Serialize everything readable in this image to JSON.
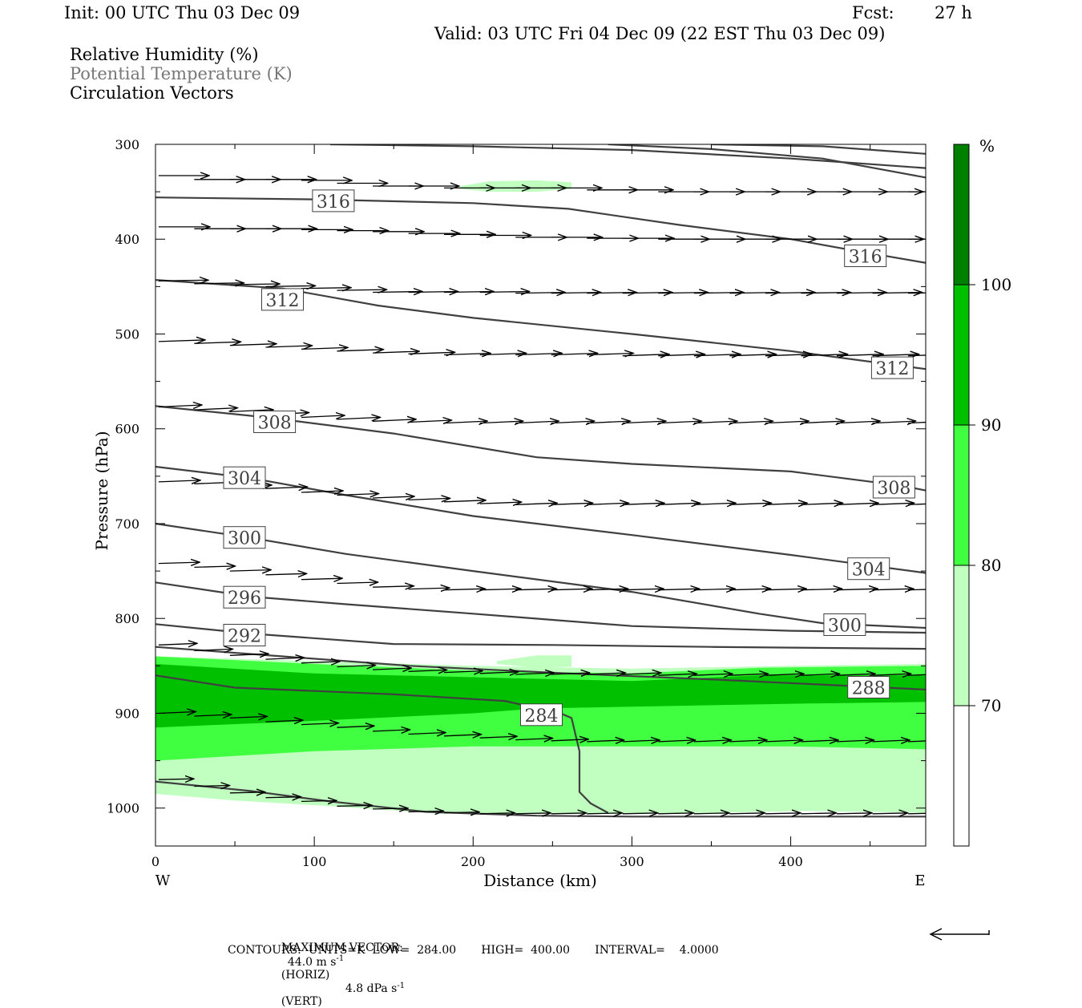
{
  "header": {
    "init": "Init: 00 UTC Thu 03 Dec 09",
    "fcst_label": "Fcst:",
    "fcst_value": "27 h",
    "valid": "Valid: 03 UTC Fri 04 Dec 09 (22 EST Thu 03 Dec 09)",
    "field1": "Relative Humidity (%)",
    "field2": "Potential Temperature (K)",
    "field3": "Circulation Vectors"
  },
  "footer": {
    "max_vector_label": "MAXIMUM VECTOR:",
    "horiz_value": "44.0 m s",
    "horiz_unit": "(HORIZ)",
    "vert_value": "4.8 dPa s",
    "vert_unit": "(VERT)",
    "exponent": "-1",
    "contours": "CONTOURS:  UNITS=K  LOW=  284.00       HIGH=  400.00       INTERVAL=    4.0000"
  },
  "colors": {
    "rh_70_80": "#c0ffc0",
    "rh_80_90": "#40ff40",
    "rh_90_100": "#00c000",
    "rh_100": "#008000",
    "theta_line": "#404040"
  },
  "chart_data": {
    "type": "cross-section",
    "xlabel": "Distance (km)",
    "ylabel": "Pressure (hPa)",
    "xlim": [
      0,
      485
    ],
    "ylim": [
      300,
      1040
    ],
    "x_ticks": [
      "0",
      "100",
      "200",
      "300",
      "400"
    ],
    "y_ticks": [
      "300",
      "400",
      "500",
      "600",
      "700",
      "800",
      "900",
      "1000"
    ],
    "x_end_labels": {
      "left": "W",
      "right": "E"
    },
    "colorbar": {
      "unit": "%",
      "levels": [
        "70",
        "80",
        "90",
        "100"
      ],
      "colors": [
        "#ffffff",
        "#c0ffc0",
        "#40ff40",
        "#00c000",
        "#008000"
      ]
    },
    "rh_regions": [
      {
        "level": "70-80",
        "fill": "#c0ffc0",
        "points": [
          [
            0,
            840
          ],
          [
            100,
            845
          ],
          [
            200,
            850
          ],
          [
            300,
            853
          ],
          [
            400,
            850
          ],
          [
            485,
            848
          ],
          [
            485,
            1005
          ],
          [
            410,
            1003
          ],
          [
            350,
            1005
          ],
          [
            290,
            1006
          ],
          [
            230,
            1006
          ],
          [
            180,
            1006
          ],
          [
            110,
            998
          ],
          [
            50,
            992
          ],
          [
            0,
            985
          ]
        ]
      },
      {
        "level": "70-80",
        "fill": "#c0ffc0",
        "points": [
          [
            215,
            845
          ],
          [
            240,
            839
          ],
          [
            262,
            839
          ],
          [
            262,
            851
          ],
          [
            240,
            852
          ],
          [
            215,
            848
          ]
        ]
      },
      {
        "level": "80-90",
        "fill": "#40ff40",
        "points": [
          [
            0,
            840
          ],
          [
            100,
            848
          ],
          [
            200,
            855
          ],
          [
            300,
            858
          ],
          [
            380,
            852
          ],
          [
            485,
            850
          ],
          [
            485,
            938
          ],
          [
            400,
            935
          ],
          [
            300,
            935
          ],
          [
            200,
            935
          ],
          [
            100,
            940
          ],
          [
            0,
            950
          ]
        ]
      },
      {
        "level": "90-100",
        "fill": "#00c000",
        "points": [
          [
            0,
            848
          ],
          [
            100,
            858
          ],
          [
            200,
            862
          ],
          [
            300,
            866
          ],
          [
            380,
            860
          ],
          [
            485,
            860
          ],
          [
            485,
            888
          ],
          [
            400,
            890
          ],
          [
            300,
            893
          ],
          [
            240,
            895
          ],
          [
            200,
            900
          ],
          [
            100,
            908
          ],
          [
            0,
            915
          ]
        ]
      },
      {
        "level": "upper-moist",
        "fill": "#c0ffc0",
        "points": [
          [
            192,
            344
          ],
          [
            210,
            339
          ],
          [
            240,
            338
          ],
          [
            262,
            340
          ],
          [
            262,
            347
          ],
          [
            240,
            350
          ],
          [
            210,
            350
          ],
          [
            192,
            347
          ]
        ]
      }
    ],
    "theta_contours": [
      {
        "label": "316",
        "points": [
          [
            110,
            300
          ],
          [
            200,
            302
          ],
          [
            300,
            306
          ],
          [
            400,
            315
          ],
          [
            485,
            325
          ]
        ]
      },
      {
        "label": "",
        "points": [
          [
            285,
            300
          ],
          [
            350,
            305
          ],
          [
            420,
            315
          ],
          [
            485,
            335
          ]
        ]
      },
      {
        "label": "",
        "points": [
          [
            350,
            300
          ],
          [
            420,
            302
          ],
          [
            485,
            310
          ]
        ]
      },
      {
        "label": "316",
        "points": [
          [
            0,
            356
          ],
          [
            100,
            358
          ],
          [
            200,
            362
          ],
          [
            260,
            368
          ],
          [
            330,
            385
          ],
          [
            400,
            400
          ],
          [
            440,
            412
          ],
          [
            485,
            425
          ]
        ]
      },
      {
        "label": "312",
        "points": [
          [
            0,
            443
          ],
          [
            80,
            452
          ],
          [
            140,
            470
          ],
          [
            200,
            483
          ],
          [
            300,
            500
          ],
          [
            400,
            518
          ],
          [
            485,
            537
          ]
        ]
      },
      {
        "label": "308",
        "points": [
          [
            0,
            576
          ],
          [
            70,
            588
          ],
          [
            150,
            605
          ],
          [
            240,
            630
          ],
          [
            300,
            637
          ],
          [
            400,
            645
          ],
          [
            470,
            660
          ],
          [
            485,
            665
          ]
        ]
      },
      {
        "label": "304",
        "points": [
          [
            0,
            640
          ],
          [
            60,
            652
          ],
          [
            120,
            670
          ],
          [
            200,
            692
          ],
          [
            300,
            712
          ],
          [
            400,
            733
          ],
          [
            485,
            752
          ]
        ]
      },
      {
        "label": "300",
        "points": [
          [
            0,
            700
          ],
          [
            60,
            715
          ],
          [
            120,
            732
          ],
          [
            200,
            750
          ],
          [
            300,
            772
          ],
          [
            380,
            795
          ],
          [
            420,
            805
          ],
          [
            485,
            810
          ]
        ]
      },
      {
        "label": "296",
        "points": [
          [
            0,
            762
          ],
          [
            60,
            777
          ],
          [
            120,
            785
          ],
          [
            200,
            795
          ],
          [
            300,
            808
          ],
          [
            400,
            813
          ],
          [
            485,
            815
          ]
        ]
      },
      {
        "label": "292",
        "points": [
          [
            0,
            806
          ],
          [
            60,
            816
          ],
          [
            150,
            827
          ],
          [
            250,
            828
          ],
          [
            350,
            830
          ],
          [
            485,
            832
          ]
        ]
      },
      {
        "label": "288",
        "points": [
          [
            0,
            830
          ],
          [
            80,
            840
          ],
          [
            160,
            850
          ],
          [
            260,
            858
          ],
          [
            360,
            865
          ],
          [
            485,
            875
          ]
        ]
      },
      {
        "label": "284",
        "points": [
          [
            0,
            860
          ],
          [
            50,
            873
          ],
          [
            150,
            880
          ],
          [
            220,
            887
          ],
          [
            255,
            900
          ],
          [
            262,
            905
          ],
          [
            267,
            940
          ],
          [
            267,
            983
          ],
          [
            274,
            995
          ],
          [
            285,
            1005
          ]
        ]
      },
      {
        "label": "",
        "points": [
          [
            0,
            972
          ],
          [
            60,
            982
          ],
          [
            110,
            993
          ],
          [
            170,
            1004
          ],
          [
            240,
            1008
          ],
          [
            300,
            1009
          ],
          [
            400,
            1009
          ],
          [
            485,
            1009
          ]
        ]
      }
    ],
    "theta_labels": [
      {
        "text": "316",
        "x": 112,
        "p": 360
      },
      {
        "text": "316",
        "x": 447,
        "p": 418
      },
      {
        "text": "312",
        "x": 80,
        "p": 464
      },
      {
        "text": "312",
        "x": 464,
        "p": 536
      },
      {
        "text": "308",
        "x": 75,
        "p": 593
      },
      {
        "text": "308",
        "x": 465,
        "p": 662
      },
      {
        "text": "304",
        "x": 56,
        "p": 652
      },
      {
        "text": "304",
        "x": 449,
        "p": 748
      },
      {
        "text": "300",
        "x": 56,
        "p": 715
      },
      {
        "text": "300",
        "x": 434,
        "p": 807
      },
      {
        "text": "296",
        "x": 56,
        "p": 778
      },
      {
        "text": "292",
        "x": 56,
        "p": 818
      },
      {
        "text": "288",
        "x": 449,
        "p": 873
      },
      {
        "text": "284",
        "x": 243,
        "p": 902
      }
    ],
    "vector_rows": [
      {
        "p": [
          333,
          337,
          337,
          337,
          338,
          341,
          344,
          344,
          346,
          346,
          346,
          346,
          348,
          348,
          350,
          350,
          350,
          350,
          350,
          350,
          350,
          350
        ],
        "len": 0.58,
        "up": 0
      },
      {
        "p": [
          387,
          389,
          389,
          389,
          390,
          391,
          392,
          394,
          395,
          396,
          398,
          398,
          399,
          399,
          400,
          400,
          400,
          400,
          400,
          400,
          400,
          400
        ],
        "len": 0.6,
        "up": 0
      },
      {
        "p": [
          444,
          447,
          448,
          450,
          452,
          454,
          456,
          456,
          456,
          456,
          457,
          457,
          457,
          457,
          457,
          457,
          457,
          457,
          457,
          457,
          457,
          457
        ],
        "len": 0.55,
        "up": -2
      },
      {
        "p": [
          508,
          510,
          512,
          514,
          516,
          518,
          520,
          521,
          522,
          522,
          522,
          522,
          522,
          523,
          523,
          523,
          523,
          523,
          523,
          523,
          523,
          523
        ],
        "len": 0.45,
        "up": -4
      },
      {
        "p": [
          577,
          580,
          582,
          585,
          588,
          590,
          592,
          593,
          594,
          594,
          594,
          594,
          594,
          594,
          594,
          594,
          594,
          594,
          594,
          594,
          594,
          594
        ],
        "len": 0.35,
        "up": -5
      },
      {
        "p": [
          656,
          658,
          661,
          663,
          667,
          670,
          673,
          675,
          677,
          679,
          680,
          680,
          680,
          680,
          680,
          680,
          680,
          680,
          680,
          680,
          680,
          680
        ],
        "len": 0.3,
        "up": -4
      },
      {
        "p": [
          742,
          746,
          750,
          754,
          759,
          763,
          767,
          769,
          770,
          770,
          770,
          770,
          770,
          770,
          770,
          770,
          770,
          770,
          770,
          770,
          770,
          770
        ],
        "len": 0.28,
        "up": -3
      },
      {
        "p": [
          828,
          834,
          839,
          843,
          847,
          851,
          854,
          856,
          857,
          858,
          859,
          859,
          859,
          859,
          860,
          860,
          860,
          860,
          860,
          860,
          860,
          860
        ],
        "len": 0.2,
        "up": -4
      },
      {
        "p": [
          900,
          903,
          905,
          909,
          912,
          915,
          919,
          922,
          924,
          926,
          928,
          929,
          930,
          930,
          930,
          930,
          930,
          930,
          930,
          930,
          930,
          930
        ],
        "len": 0.16,
        "up": -4
      },
      {
        "p": [
          970,
          977,
          984,
          989,
          993,
          998,
          1001,
          1004,
          1005,
          1006,
          1006,
          1006,
          1006,
          1006,
          1006,
          1006,
          1006,
          1006,
          1006,
          1006,
          1006,
          1006
        ],
        "len": 0.1,
        "up": -2
      }
    ]
  }
}
